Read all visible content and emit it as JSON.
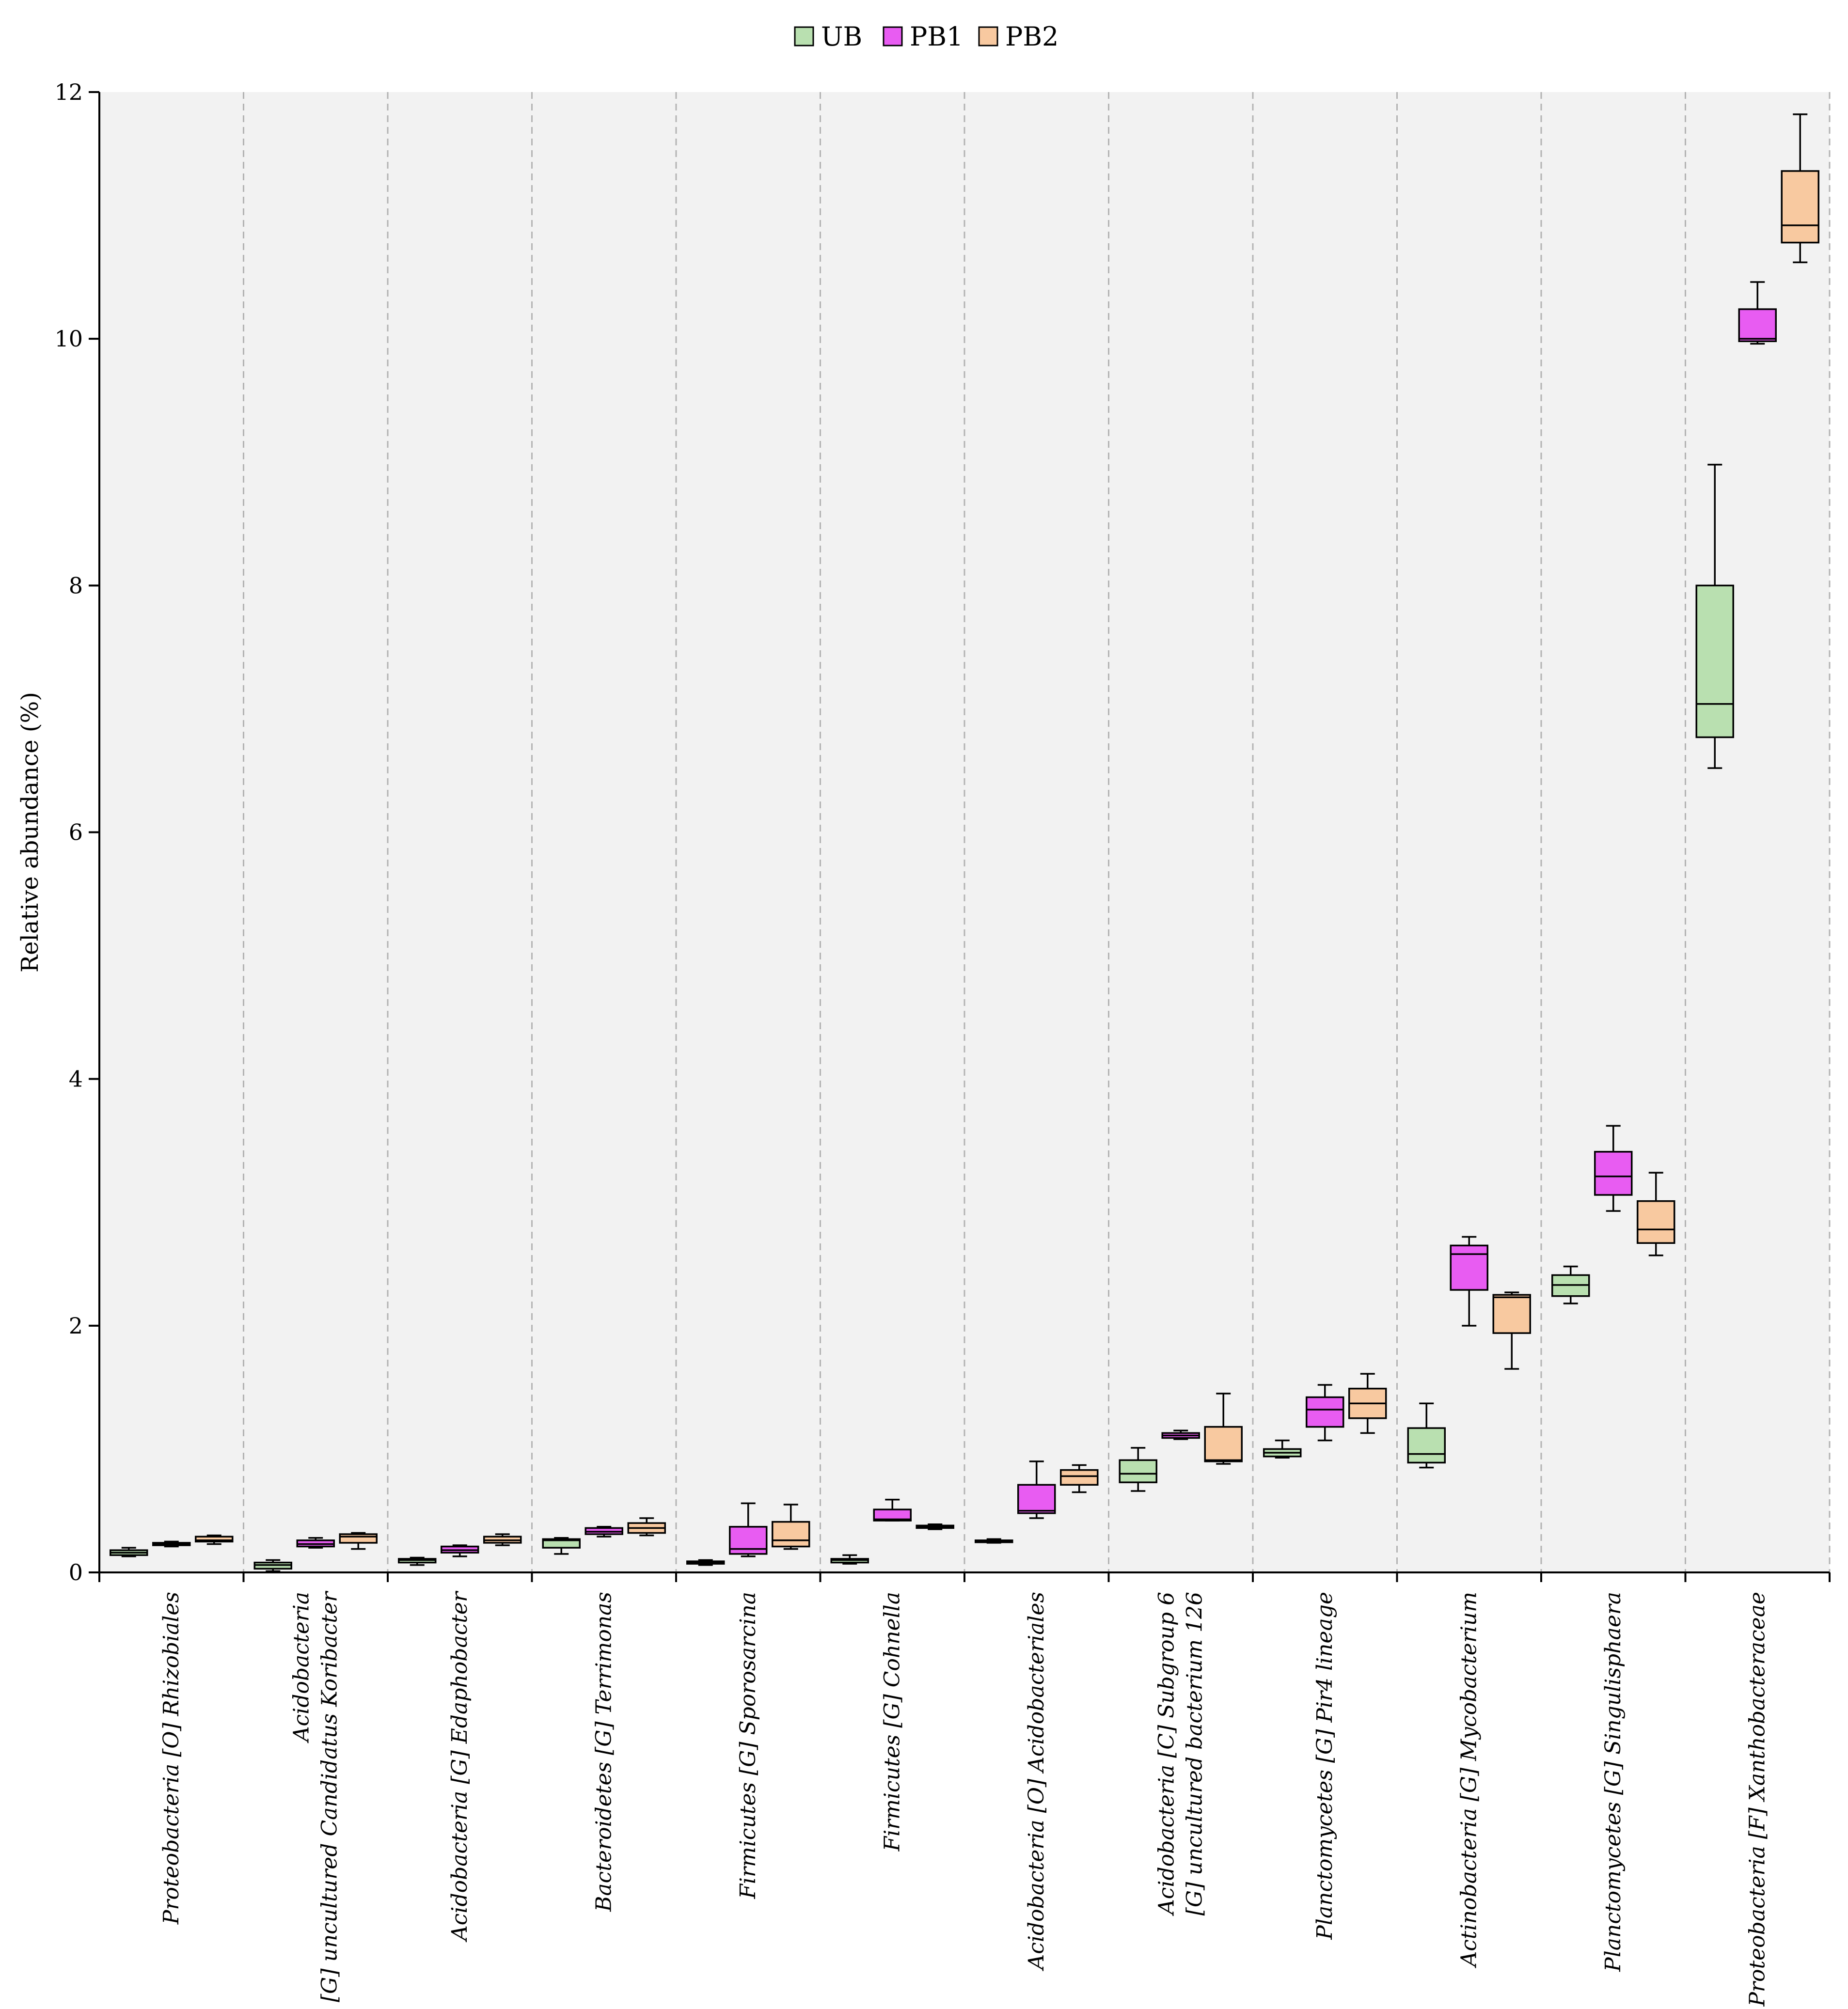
{
  "chart_data": {
    "type": "boxplot",
    "title": "",
    "xlabel": "",
    "ylabel": "Relative abundance (%)",
    "ylim": [
      0,
      12
    ],
    "yticks": [
      0,
      2,
      4,
      6,
      8,
      10,
      12
    ],
    "grid": "vertical dashed separators between taxa",
    "legend_position": "top-center",
    "series": [
      {
        "name": "UB",
        "color": "#b9e0b0"
      },
      {
        "name": "PB1",
        "color": "#e85cf2"
      },
      {
        "name": "PB2",
        "color": "#f8c9a0"
      }
    ],
    "categories": [
      {
        "lines": [
          "Proteobacteria [O] Rhizobiales"
        ]
      },
      {
        "lines": [
          "Acidobacteria",
          "[G] uncultured Candidatus Koribacter"
        ]
      },
      {
        "lines": [
          "Acidobacteria [G] Edaphobacter"
        ]
      },
      {
        "lines": [
          "Bacteroidetes [G] Terrimonas"
        ]
      },
      {
        "lines": [
          "Firmicutes [G] Sporosarcina"
        ]
      },
      {
        "lines": [
          "Firmicutes [G] Cohnella"
        ]
      },
      {
        "lines": [
          "Acidobacteria [O] Acidobacteriales"
        ]
      },
      {
        "lines": [
          "Acidobacteria [C] Subgroup 6",
          "[G] uncultured bacterium 126"
        ]
      },
      {
        "lines": [
          "Planctomycetes [G] Pir4 lineage"
        ]
      },
      {
        "lines": [
          "Actinobacteria [G] Mycobacterium"
        ]
      },
      {
        "lines": [
          "Planctomycetes [G] Singulisphaera"
        ]
      },
      {
        "lines": [
          "Proteobacteria [F] Xanthobacteraceae"
        ]
      }
    ],
    "boxes": [
      [
        {
          "min": 0.13,
          "q1": 0.14,
          "median": 0.16,
          "q3": 0.18,
          "max": 0.2
        },
        {
          "min": 0.21,
          "q1": 0.22,
          "median": 0.23,
          "q3": 0.24,
          "max": 0.25
        },
        {
          "min": 0.23,
          "q1": 0.25,
          "median": 0.26,
          "q3": 0.29,
          "max": 0.3
        }
      ],
      [
        {
          "min": 0.01,
          "q1": 0.03,
          "median": 0.06,
          "q3": 0.08,
          "max": 0.1
        },
        {
          "min": 0.2,
          "q1": 0.21,
          "median": 0.23,
          "q3": 0.26,
          "max": 0.28
        },
        {
          "min": 0.19,
          "q1": 0.24,
          "median": 0.29,
          "q3": 0.31,
          "max": 0.32
        }
      ],
      [
        {
          "min": 0.06,
          "q1": 0.08,
          "median": 0.1,
          "q3": 0.11,
          "max": 0.12
        },
        {
          "min": 0.13,
          "q1": 0.16,
          "median": 0.18,
          "q3": 0.21,
          "max": 0.22
        },
        {
          "min": 0.22,
          "q1": 0.24,
          "median": 0.26,
          "q3": 0.29,
          "max": 0.31
        }
      ],
      [
        {
          "min": 0.15,
          "q1": 0.2,
          "median": 0.26,
          "q3": 0.27,
          "max": 0.28
        },
        {
          "min": 0.29,
          "q1": 0.31,
          "median": 0.33,
          "q3": 0.36,
          "max": 0.37
        },
        {
          "min": 0.3,
          "q1": 0.32,
          "median": 0.36,
          "q3": 0.4,
          "max": 0.44
        }
      ],
      [
        {
          "min": 0.06,
          "q1": 0.07,
          "median": 0.08,
          "q3": 0.09,
          "max": 0.1
        },
        {
          "min": 0.13,
          "q1": 0.15,
          "median": 0.19,
          "q3": 0.37,
          "max": 0.56
        },
        {
          "min": 0.19,
          "q1": 0.21,
          "median": 0.26,
          "q3": 0.41,
          "max": 0.55
        }
      ],
      [
        {
          "min": 0.07,
          "q1": 0.08,
          "median": 0.1,
          "q3": 0.11,
          "max": 0.14
        },
        {
          "min": 0.42,
          "q1": 0.42,
          "median": 0.43,
          "q3": 0.51,
          "max": 0.59
        },
        {
          "min": 0.35,
          "q1": 0.36,
          "median": 0.37,
          "q3": 0.38,
          "max": 0.39
        }
      ],
      [
        {
          "min": 0.24,
          "q1": 0.25,
          "median": 0.25,
          "q3": 0.26,
          "max": 0.27
        },
        {
          "min": 0.44,
          "q1": 0.48,
          "median": 0.5,
          "q3": 0.71,
          "max": 0.9
        },
        {
          "min": 0.65,
          "q1": 0.71,
          "median": 0.78,
          "q3": 0.83,
          "max": 0.87
        }
      ],
      [
        {
          "min": 0.66,
          "q1": 0.73,
          "median": 0.8,
          "q3": 0.91,
          "max": 1.01
        },
        {
          "min": 1.08,
          "q1": 1.09,
          "median": 1.11,
          "q3": 1.13,
          "max": 1.15
        },
        {
          "min": 0.88,
          "q1": 0.9,
          "median": 0.91,
          "q3": 1.18,
          "max": 1.45
        }
      ],
      [
        {
          "min": 0.93,
          "q1": 0.94,
          "median": 0.97,
          "q3": 1.0,
          "max": 1.07
        },
        {
          "min": 1.07,
          "q1": 1.18,
          "median": 1.32,
          "q3": 1.42,
          "max": 1.52
        },
        {
          "min": 1.13,
          "q1": 1.25,
          "median": 1.37,
          "q3": 1.49,
          "max": 1.61
        }
      ],
      [
        {
          "min": 0.85,
          "q1": 0.89,
          "median": 0.96,
          "q3": 1.17,
          "max": 1.37
        },
        {
          "min": 2.0,
          "q1": 2.29,
          "median": 2.58,
          "q3": 2.65,
          "max": 2.72
        },
        {
          "min": 1.65,
          "q1": 1.94,
          "median": 2.23,
          "q3": 2.25,
          "max": 2.27
        }
      ],
      [
        {
          "min": 2.18,
          "q1": 2.24,
          "median": 2.33,
          "q3": 2.41,
          "max": 2.48
        },
        {
          "min": 2.93,
          "q1": 3.06,
          "median": 3.21,
          "q3": 3.41,
          "max": 3.62
        },
        {
          "min": 2.57,
          "q1": 2.67,
          "median": 2.78,
          "q3": 3.01,
          "max": 3.24
        }
      ],
      [
        {
          "min": 6.52,
          "q1": 6.77,
          "median": 7.04,
          "q3": 8.0,
          "max": 8.98
        },
        {
          "min": 9.96,
          "q1": 9.98,
          "median": 10.0,
          "q3": 10.24,
          "max": 10.46
        },
        {
          "min": 10.62,
          "q1": 10.78,
          "median": 10.92,
          "q3": 11.36,
          "max": 11.82
        }
      ]
    ]
  }
}
